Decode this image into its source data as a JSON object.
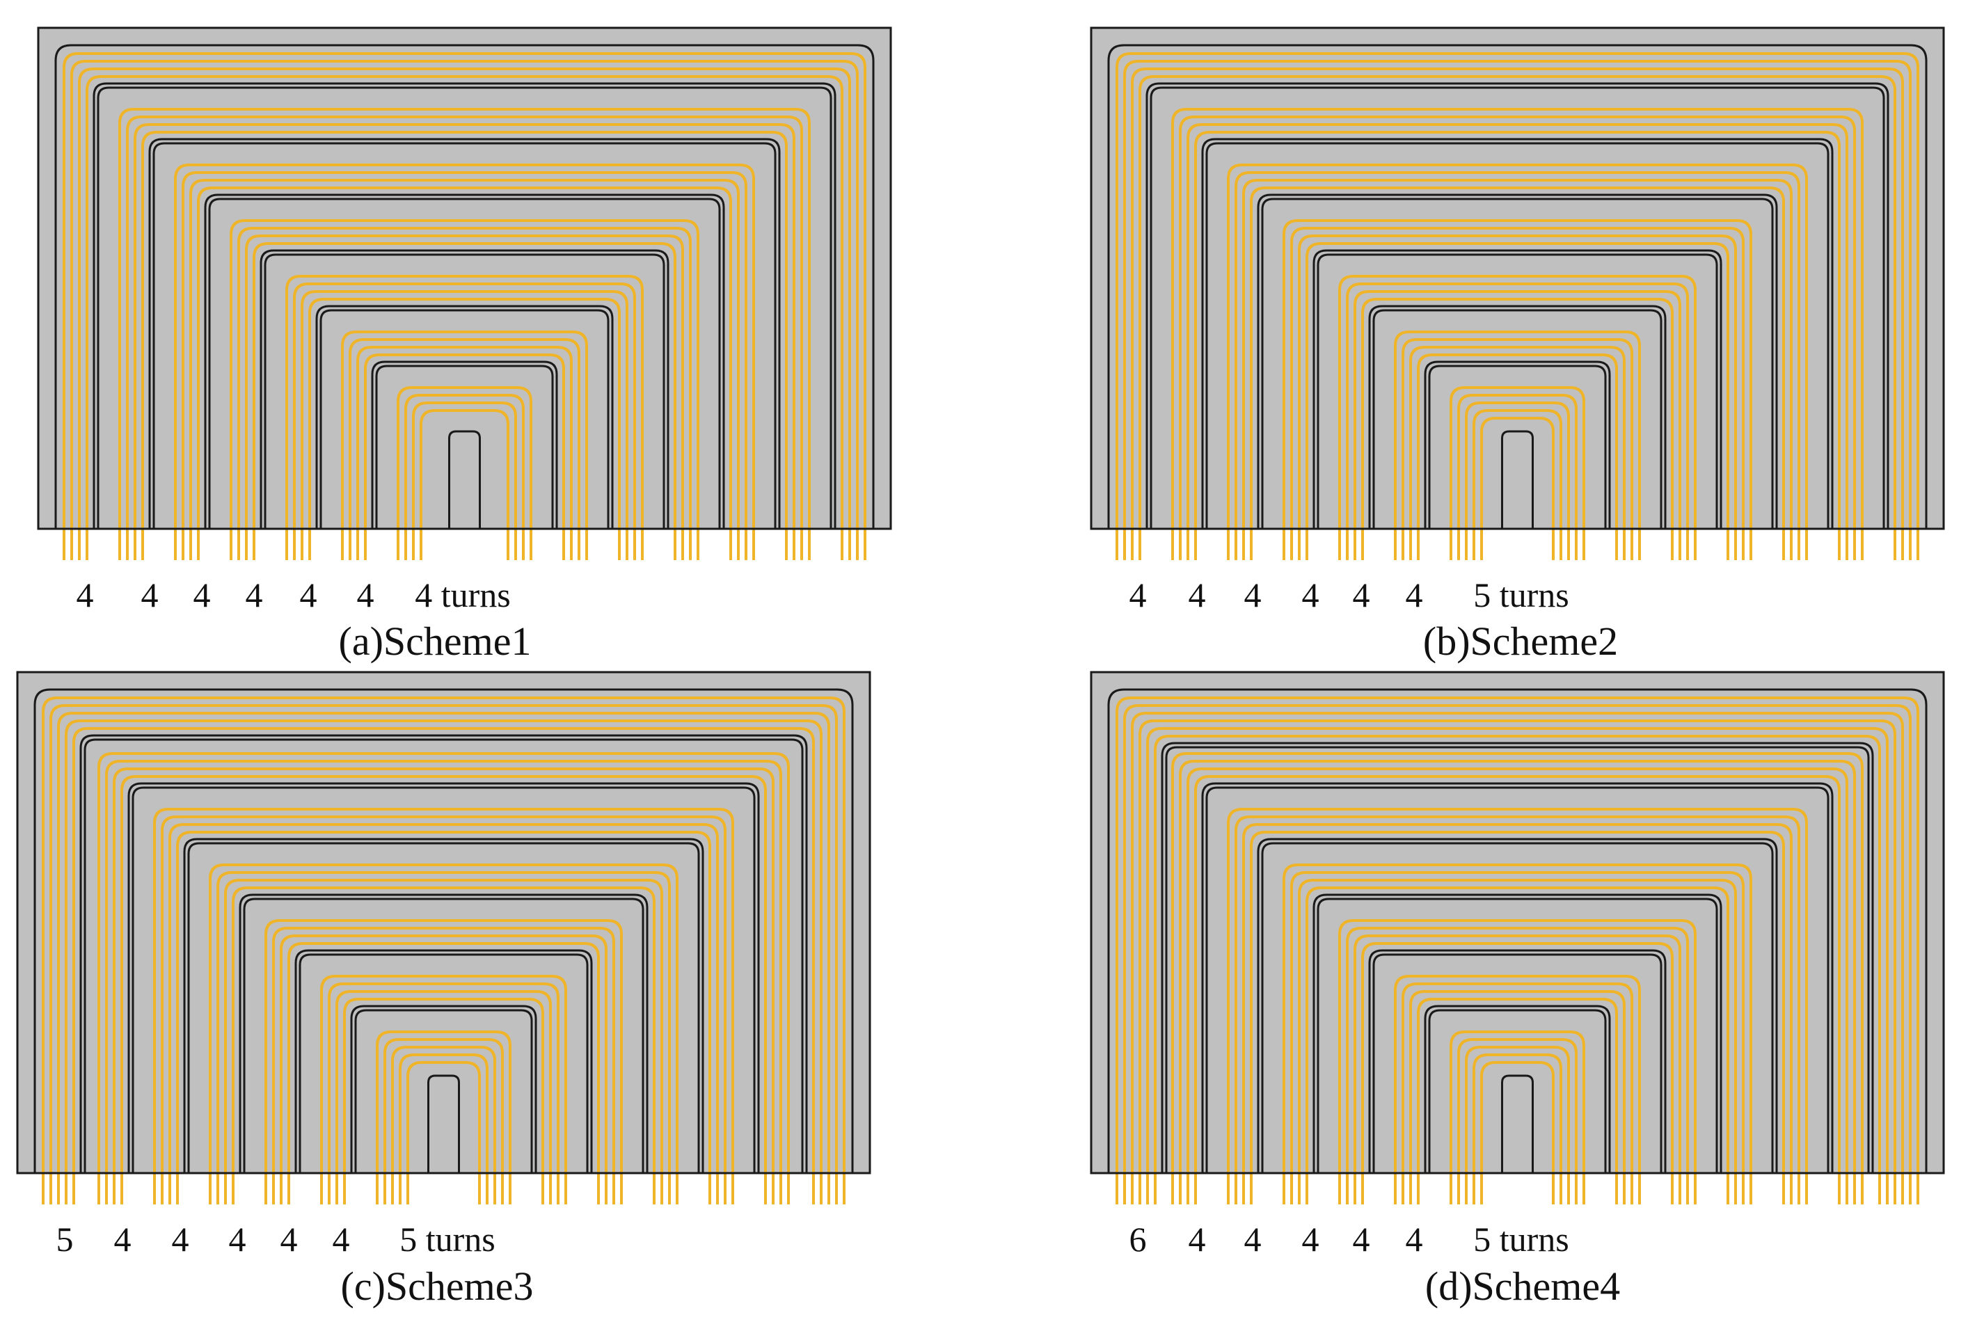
{
  "colors": {
    "core": "#c0c0c0",
    "outline": "#1a1a1a",
    "conductor": "#f0b429",
    "background": "#ffffff"
  },
  "panels": [
    {
      "id": "a",
      "caption": "(a)Scheme1",
      "turns": [
        4,
        4,
        4,
        4,
        4,
        4,
        4
      ],
      "labels": [
        "4",
        "4",
        "4",
        "4",
        "4",
        "4",
        "4 turns"
      ]
    },
    {
      "id": "b",
      "caption": "(b)Scheme2",
      "turns": [
        4,
        4,
        4,
        4,
        4,
        4,
        5
      ],
      "labels": [
        "4",
        "4",
        "4",
        "4",
        "4",
        "4",
        "5 turns"
      ]
    },
    {
      "id": "c",
      "caption": "(c)Scheme3",
      "turns": [
        5,
        4,
        4,
        4,
        4,
        4,
        5
      ],
      "labels": [
        "5",
        "4",
        "4",
        "4",
        "4",
        "4",
        "5 turns"
      ]
    },
    {
      "id": "d",
      "caption": "(d)Scheme4",
      "turns": [
        6,
        4,
        4,
        4,
        4,
        4,
        5
      ],
      "labels": [
        "6",
        "4",
        "4",
        "4",
        "4",
        "4",
        "5 turns"
      ]
    }
  ]
}
